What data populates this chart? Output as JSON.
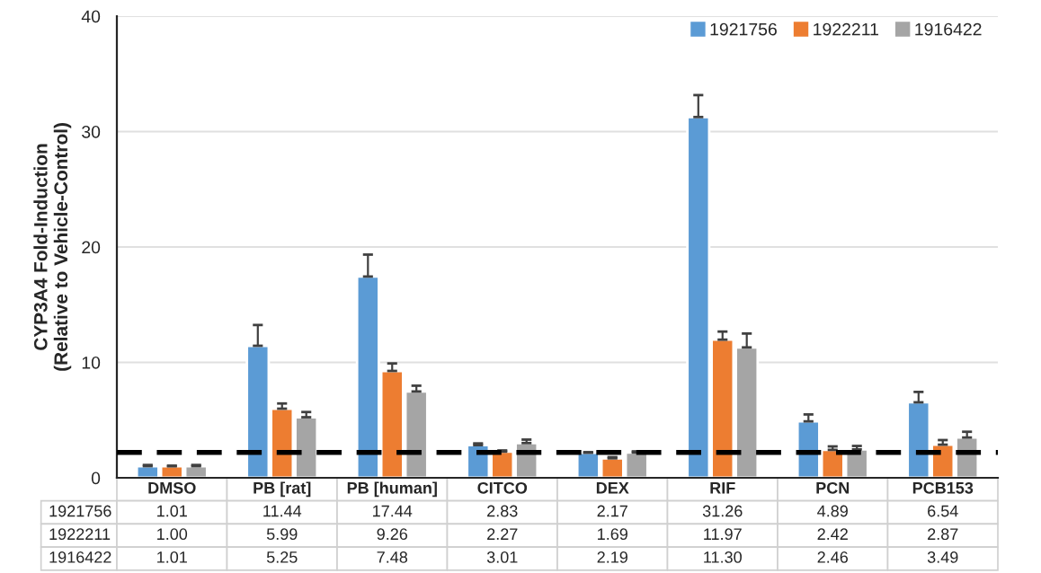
{
  "chart_data": {
    "type": "bar",
    "ylabel": "CYP3A4 Fold-Induction\n(Relative to Vehicle-Control)",
    "categories": [
      "DMSO",
      "PB [rat]",
      "PB [human]",
      "CITCO",
      "DEX",
      "RIF",
      "PCN",
      "PCB153"
    ],
    "series": [
      {
        "name": "1921756",
        "color": "#5b9bd5",
        "values": [
          1.01,
          11.44,
          17.44,
          2.83,
          2.17,
          31.26,
          4.89,
          6.54
        ],
        "errors": [
          0.1,
          1.8,
          1.9,
          0.15,
          0.05,
          1.9,
          0.6,
          0.9
        ],
        "value_labels": [
          "1.01",
          "11.44",
          "17.44",
          "2.83",
          "2.17",
          "31.26",
          "4.89",
          "6.54"
        ]
      },
      {
        "name": "1922211",
        "color": "#ed7d31",
        "values": [
          1.0,
          5.99,
          9.26,
          2.27,
          1.69,
          11.97,
          2.42,
          2.87
        ],
        "errors": [
          0.05,
          0.45,
          0.65,
          0.1,
          0.1,
          0.7,
          0.3,
          0.4
        ],
        "value_labels": [
          "1.00",
          "5.99",
          "9.26",
          "2.27",
          "1.69",
          "11.97",
          "2.42",
          "2.87"
        ]
      },
      {
        "name": "1916422",
        "color": "#a5a5a5",
        "values": [
          1.01,
          5.25,
          7.48,
          3.01,
          2.19,
          11.3,
          2.46,
          3.49
        ],
        "errors": [
          0.1,
          0.45,
          0.5,
          0.3,
          0.1,
          1.2,
          0.3,
          0.5
        ],
        "value_labels": [
          "1.01",
          "5.25",
          "7.48",
          "3.01",
          "2.19",
          "11.30",
          "2.46",
          "3.49"
        ]
      }
    ],
    "ylim": [
      0,
      40
    ],
    "yticks": [
      0,
      10,
      20,
      30,
      40
    ],
    "grid": "y",
    "legend": "top right",
    "ref_lines": [
      {
        "axis": "y",
        "value": 2.2,
        "color": "#000000",
        "line_style": "dashed"
      }
    ]
  }
}
